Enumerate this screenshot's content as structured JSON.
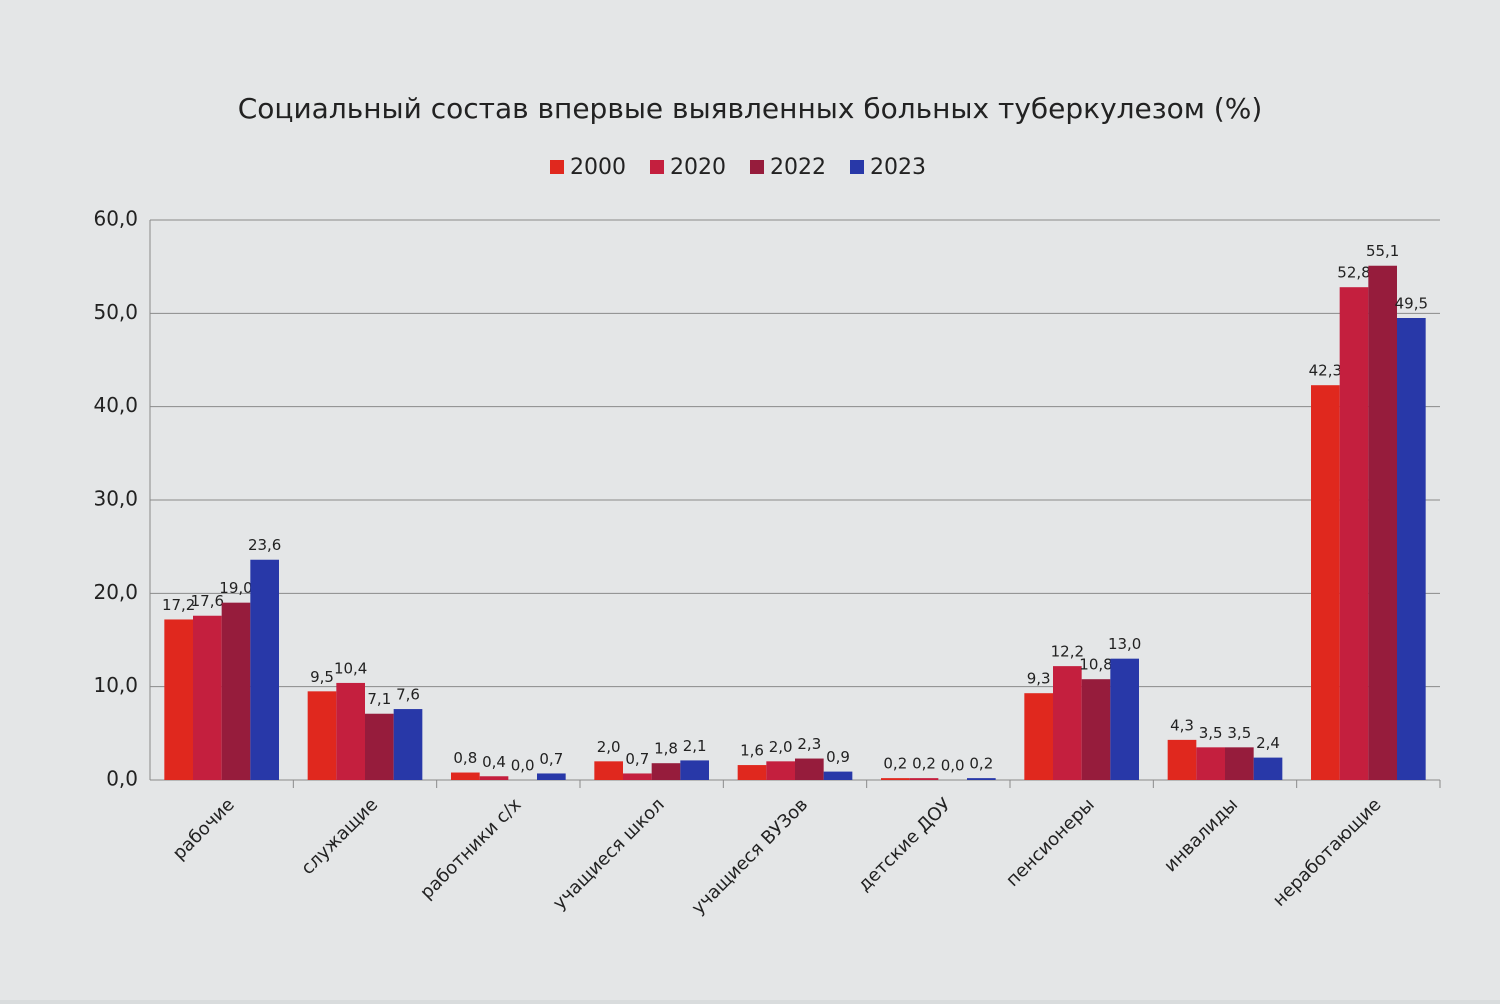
{
  "chart_data": {
    "type": "bar",
    "title": "Социальный состав впервые выявленных больных туберкулезом (%)",
    "categories": [
      "рабочие",
      "служащие",
      "работники с/х",
      "учащиеся школ",
      "учащиеся ВУЗов",
      "детские ДОУ",
      "пенсионеры",
      "инвалиды",
      "неработающие"
    ],
    "series": [
      {
        "name": "2000",
        "color": "#e0281e",
        "values": [
          17.2,
          9.5,
          0.8,
          2.0,
          1.6,
          0.2,
          9.3,
          4.3,
          42.3
        ],
        "value_labels": [
          "17,2",
          "9,5",
          "0,8",
          "2,0",
          "1,6",
          "0,2",
          "9,3",
          "4,3",
          "42,3"
        ]
      },
      {
        "name": "2020",
        "color": "#c41f3e",
        "values": [
          17.6,
          10.4,
          0.4,
          0.7,
          2.0,
          0.2,
          12.2,
          3.5,
          52.8
        ],
        "value_labels": [
          "17,6",
          "10,4",
          "0,4",
          "0,7",
          "2,0",
          "0,2",
          "12,2",
          "3,5",
          "52,8"
        ]
      },
      {
        "name": "2022",
        "color": "#961c3c",
        "values": [
          19.0,
          7.1,
          0.0,
          1.8,
          2.3,
          0.0,
          10.8,
          3.5,
          55.1
        ],
        "value_labels": [
          "19,0",
          "7,1",
          "0,0",
          "1,8",
          "2,3",
          "0,0",
          "10,8",
          "3,5",
          "55,1"
        ]
      },
      {
        "name": "2023",
        "color": "#2838a8",
        "values": [
          23.6,
          7.6,
          0.7,
          2.1,
          0.9,
          0.2,
          13.0,
          2.4,
          49.5
        ],
        "value_labels": [
          "23,6",
          "7,6",
          "0,7",
          "2,1",
          "0,9",
          "0,2",
          "13,0",
          "2,4",
          "49,5"
        ]
      }
    ],
    "ylim": [
      0,
      60
    ],
    "yticks": [
      {
        "value": 0,
        "label": "0,0"
      },
      {
        "value": 10,
        "label": "10,0"
      },
      {
        "value": 20,
        "label": "20,0"
      },
      {
        "value": 30,
        "label": "30,0"
      },
      {
        "value": 40,
        "label": "40,0"
      },
      {
        "value": 50,
        "label": "50,0"
      },
      {
        "value": 60,
        "label": "60,0"
      }
    ],
    "grid": true,
    "legend": "top"
  }
}
